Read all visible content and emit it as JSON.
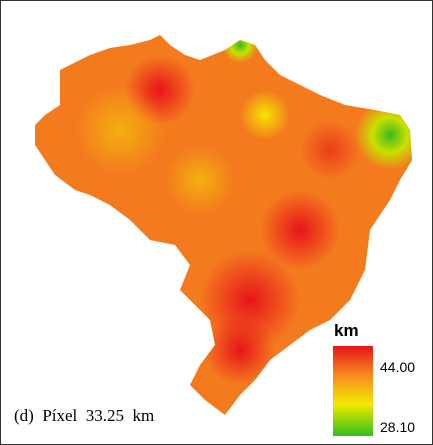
{
  "caption": "(d)  Píxel  33.25  km",
  "legend": {
    "title": "km",
    "max_label": "44.00",
    "min_label": "28.10"
  }
}
